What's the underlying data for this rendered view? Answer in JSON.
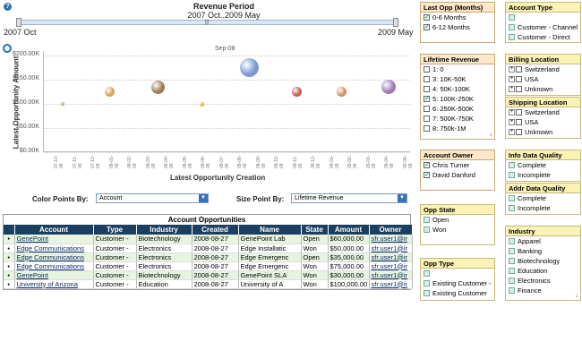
{
  "period": {
    "title": "Revenue Period",
    "range": "2007 Oct..2009 May",
    "start": "2007 Oct",
    "end": "2009 May",
    "grip": "|||"
  },
  "chart_data": {
    "type": "scatter",
    "xlabel": "Latest Opportunity Creation",
    "ylabel": "Latest Opportunity Amount",
    "top_label": "Sep-08",
    "ylim": [
      0,
      210000
    ],
    "y_ticks": [
      "$0.00K",
      "$50.00K",
      "$100.00K",
      "$150.00K",
      "$200.00K"
    ],
    "x_ticks": [
      "07-10-09",
      "07-11-09",
      "07-12-09",
      "08-01-09",
      "08-02-09",
      "08-03-09",
      "08-04-09",
      "08-05-09",
      "08-06-09",
      "08-07-09",
      "08-08-09",
      "08-09-09",
      "08-10-09",
      "08-11-09",
      "08-12-09",
      "09-01-09",
      "09-02-09",
      "09-03-09",
      "09-04-09",
      "09-05-09"
    ],
    "points": [
      {
        "x": 0.05,
        "y": 100000,
        "size": 4,
        "color": "#7ac04a"
      },
      {
        "x": 0.18,
        "y": 125000,
        "size": 11,
        "color": "#d9a050"
      },
      {
        "x": 0.31,
        "y": 135000,
        "size": 15,
        "color": "#a07850"
      },
      {
        "x": 0.43,
        "y": 100000,
        "size": 5,
        "color": "#e0a040"
      },
      {
        "x": 0.56,
        "y": 175000,
        "size": 21,
        "color": "#7a9ad0"
      },
      {
        "x": 0.69,
        "y": 125000,
        "size": 11,
        "color": "#c85a4a"
      },
      {
        "x": 0.81,
        "y": 125000,
        "size": 11,
        "color": "#d98a60"
      },
      {
        "x": 0.94,
        "y": 135000,
        "size": 16,
        "color": "#a07ab8"
      }
    ]
  },
  "controls": {
    "color_label": "Color Points By:",
    "color_value": "Account",
    "size_label": "Size Point By:",
    "size_value": "Lifetime Revenue"
  },
  "table": {
    "title": "Account Opportunities",
    "headers": [
      "Account",
      "Type",
      "Industry",
      "Created",
      "Name",
      "State",
      "Amount",
      "Owner"
    ],
    "rows": [
      {
        "account": "GenePoint",
        "type": "Customer -",
        "industry": "Biotechnology",
        "created": "2008-08-27",
        "name": "GenePoint Lab",
        "state": "Open",
        "amount": "$60,000.00",
        "owner": "sfr.user1@ir"
      },
      {
        "account": "Edge Communications",
        "type": "Customer -",
        "industry": "Electronics",
        "created": "2008-08-27",
        "name": "Edge Installatic",
        "state": "Won",
        "amount": "$50,000.00",
        "owner": "sfr.user1@ir"
      },
      {
        "account": "Edge Communications",
        "type": "Customer -",
        "industry": "Electronics",
        "created": "2008-08-27",
        "name": "Edge Emergenc",
        "state": "Open",
        "amount": "$35,000.00",
        "owner": "sfr.user1@ir"
      },
      {
        "account": "Edge Communications",
        "type": "Customer -",
        "industry": "Electronics",
        "created": "2008-08-27",
        "name": "Edge Emergenc",
        "state": "Won",
        "amount": "$75,000.00",
        "owner": "sfr.user1@ir"
      },
      {
        "account": "GenePoint",
        "type": "Customer -",
        "industry": "Biotechnology",
        "created": "2008-08-27",
        "name": "GenePoint SLA",
        "state": "Won",
        "amount": "$30,000.00",
        "owner": "sfr.user1@ir"
      },
      {
        "account": "University of Arizona",
        "type": "Customer -",
        "industry": "Education",
        "created": "2008-08-27",
        "name": "University of A",
        "state": "Won",
        "amount": "$100,000.00",
        "owner": "sfr.user1@ir"
      }
    ]
  },
  "filters": {
    "last_opp": {
      "title": "Last Opp (Months)",
      "items": [
        "0-6 Months",
        "6-12 Months"
      ]
    },
    "account_type": {
      "title": "Account Type",
      "items": [
        "",
        "Customer - Channel",
        "Customer - Direct"
      ]
    },
    "lifetime_revenue": {
      "title": "Lifetime Revenue",
      "items": [
        "1: 0",
        "3: 10K-50K",
        "4: 50K-100K",
        "5: 100K-250K",
        "6: 250K-500K",
        "7: 500K-750K",
        "8: 750k-1M"
      ]
    },
    "billing_location": {
      "title": "Billing Location",
      "items": [
        "Switzerland",
        "USA",
        "Unknown"
      ]
    },
    "shipping_location": {
      "title": "Shipping Location",
      "items": [
        "Switzerland",
        "USA",
        "Unknown"
      ]
    },
    "account_owner": {
      "title": "Account Owner",
      "items": [
        "Chris Turner",
        "David Danford"
      ]
    },
    "info_quality": {
      "title": "Info Data Quality",
      "items": [
        "Complete",
        "Incomplete"
      ]
    },
    "addr_quality": {
      "title": "Addr Data Quality",
      "items": [
        "Complete",
        "Incomplete"
      ]
    },
    "opp_state": {
      "title": "Opp State",
      "items": [
        "Open",
        "Won"
      ]
    },
    "opp_type": {
      "title": "Opp Type",
      "items": [
        "",
        "Existing Customer -",
        "Existing Customer"
      ]
    },
    "industry": {
      "title": "Industry",
      "items": [
        "Apparel",
        "Banking",
        "Biotechnology",
        "Education",
        "Electronics",
        "Finance"
      ]
    }
  }
}
